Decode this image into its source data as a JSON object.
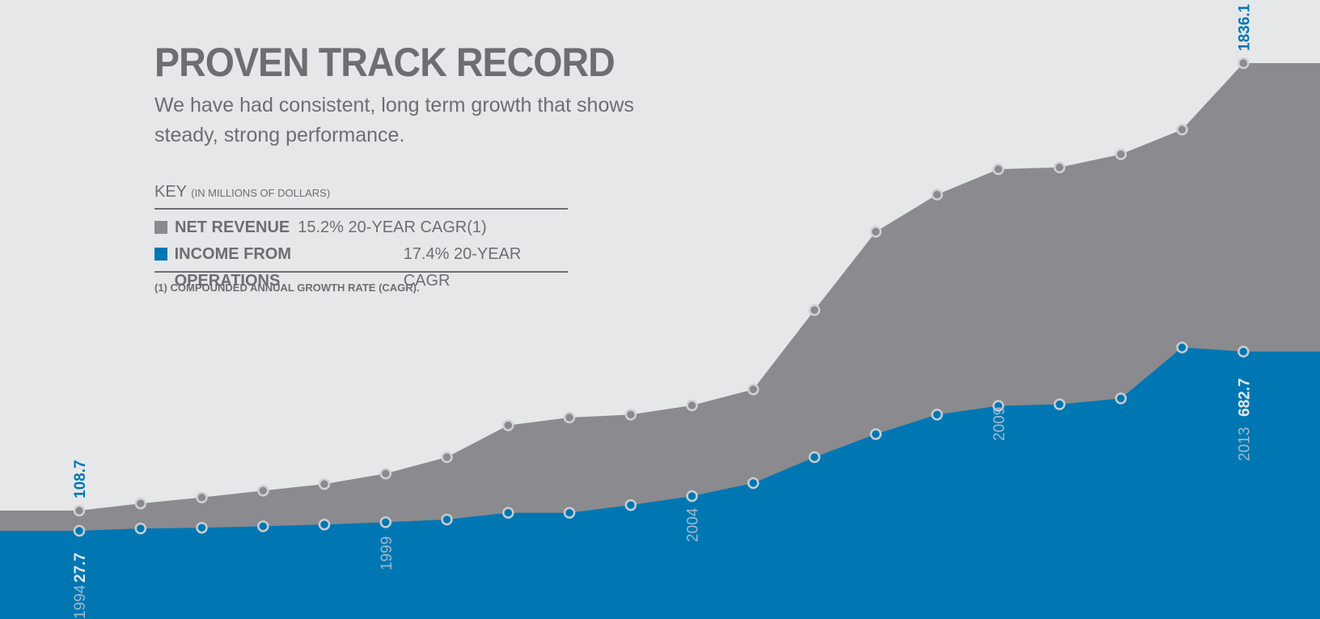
{
  "header": {
    "title": "PROVEN TRACK RECORD",
    "subtitle": "We have had consistent, long term growth that shows steady, strong performance."
  },
  "key": {
    "heading": "KEY",
    "heading_note": "(IN MILLIONS OF DOLLARS)",
    "items": [
      {
        "label": "NET REVENUE",
        "cagr": "15.2% 20-YEAR CAGR(1)",
        "color": "#8b8a8f"
      },
      {
        "label": "INCOME FROM OPERATIONS",
        "cagr": "17.4% 20-YEAR CAGR",
        "color": "#0077b3"
      }
    ],
    "footnote": "(1) COMPOUNDED ANNUAL GROWTH RATE (CAGR)."
  },
  "chart_data": {
    "type": "area",
    "x": [
      1994,
      1995,
      1996,
      1997,
      1998,
      1999,
      2000,
      2001,
      2002,
      2003,
      2004,
      2005,
      2006,
      2007,
      2008,
      2009,
      2010,
      2011,
      2012,
      2013
    ],
    "series": [
      {
        "name": "NET REVENUE",
        "color": "#8b8a8f",
        "values": [
          108.7,
          131,
          150,
          171,
          192,
          226,
          280,
          385,
          420,
          438,
          495,
          594,
          776,
          952,
          1090,
          1235,
          1245,
          1320,
          1460,
          1836.1
        ]
      },
      {
        "name": "INCOME FROM OPERATIONS",
        "color": "#0077b3",
        "values": [
          27.7,
          37,
          40,
          46,
          53,
          62,
          73,
          100,
          100,
          126,
          154,
          195,
          280,
          356,
          438,
          492,
          502,
          538,
          692,
          682.7
        ]
      }
    ],
    "tick_labels": [
      "1994",
      "1999",
      "2004",
      "2009",
      "2013"
    ],
    "value_labels": [
      {
        "year": 1994,
        "text": "108.7",
        "series": "NET REVENUE"
      },
      {
        "year": 1994,
        "text": "27.7",
        "series": "INCOME FROM OPERATIONS"
      },
      {
        "year": 2013,
        "text": "1836.1",
        "series": "NET REVENUE"
      },
      {
        "year": 2013,
        "text": "682.7",
        "series": "INCOME FROM OPERATIONS"
      }
    ],
    "ylim": [
      -100,
      2000
    ],
    "grid": false
  }
}
